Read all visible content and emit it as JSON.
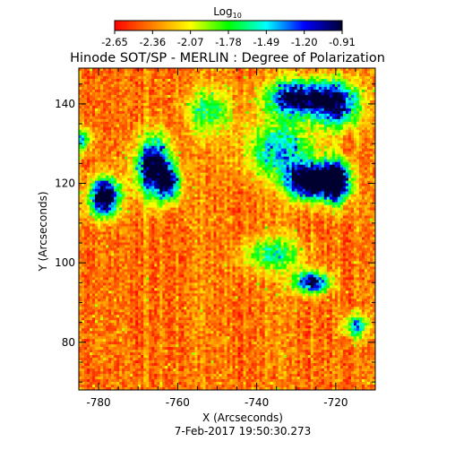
{
  "chart_data": {
    "type": "heatmap",
    "title": "Hinode SOT/SP - MERLIN : Degree of Polarization",
    "xlabel": "X (Arcseconds)",
    "ylabel": "Y (Arcseconds)",
    "footer": "7-Feb-2017 19:50:30.273",
    "xlim": [
      -785,
      -710
    ],
    "ylim": [
      68,
      149
    ],
    "x_ticks": [
      -780,
      -760,
      -740,
      -720
    ],
    "y_ticks": [
      80,
      100,
      120,
      140
    ],
    "colorbar": {
      "label": "Log10",
      "label_base": "Log",
      "label_sub": "10",
      "ticks": [
        "-2.65",
        "-2.36",
        "-2.07",
        "-1.78",
        "-1.49",
        "-1.20",
        "-0.91"
      ],
      "range": [
        -2.65,
        -0.91
      ],
      "colormap": "rainbow",
      "stops": [
        "#ff0000",
        "#ff8000",
        "#ffff00",
        "#00ff00",
        "#00ffff",
        "#0000ff",
        "#000030"
      ]
    },
    "features": [
      {
        "x": -778.5,
        "y": 116.5,
        "sx": 2.6,
        "sy": 3.2,
        "amp": 1.15
      },
      {
        "x": -766.0,
        "y": 124.0,
        "sx": 3.0,
        "sy": 5.0,
        "amp": 1.05
      },
      {
        "x": -762.0,
        "y": 120.0,
        "sx": 2.0,
        "sy": 3.0,
        "amp": 0.6
      },
      {
        "x": -727.0,
        "y": 120.5,
        "sx": 3.5,
        "sy": 3.0,
        "amp": 1.2
      },
      {
        "x": -720.0,
        "y": 120.5,
        "sx": 2.5,
        "sy": 3.5,
        "amp": 1.3
      },
      {
        "x": -730.0,
        "y": 141.5,
        "sx": 5.0,
        "sy": 3.0,
        "amp": 0.95
      },
      {
        "x": -720.0,
        "y": 140.0,
        "sx": 4.0,
        "sy": 4.0,
        "amp": 0.9
      },
      {
        "x": -726.0,
        "y": 95.0,
        "sx": 3.0,
        "sy": 2.0,
        "amp": 0.85
      },
      {
        "x": -734.0,
        "y": 128.5,
        "sx": 6.0,
        "sy": 5.0,
        "amp": 0.55
      },
      {
        "x": -736.0,
        "y": 102.0,
        "sx": 5.0,
        "sy": 3.0,
        "amp": 0.45
      },
      {
        "x": -715.0,
        "y": 84.0,
        "sx": 2.0,
        "sy": 2.0,
        "amp": 0.65
      },
      {
        "x": -784.0,
        "y": 131.0,
        "sx": 1.5,
        "sy": 2.0,
        "amp": 0.5
      },
      {
        "x": -752.0,
        "y": 138.0,
        "sx": 4.0,
        "sy": 4.0,
        "amp": 0.4
      }
    ]
  }
}
